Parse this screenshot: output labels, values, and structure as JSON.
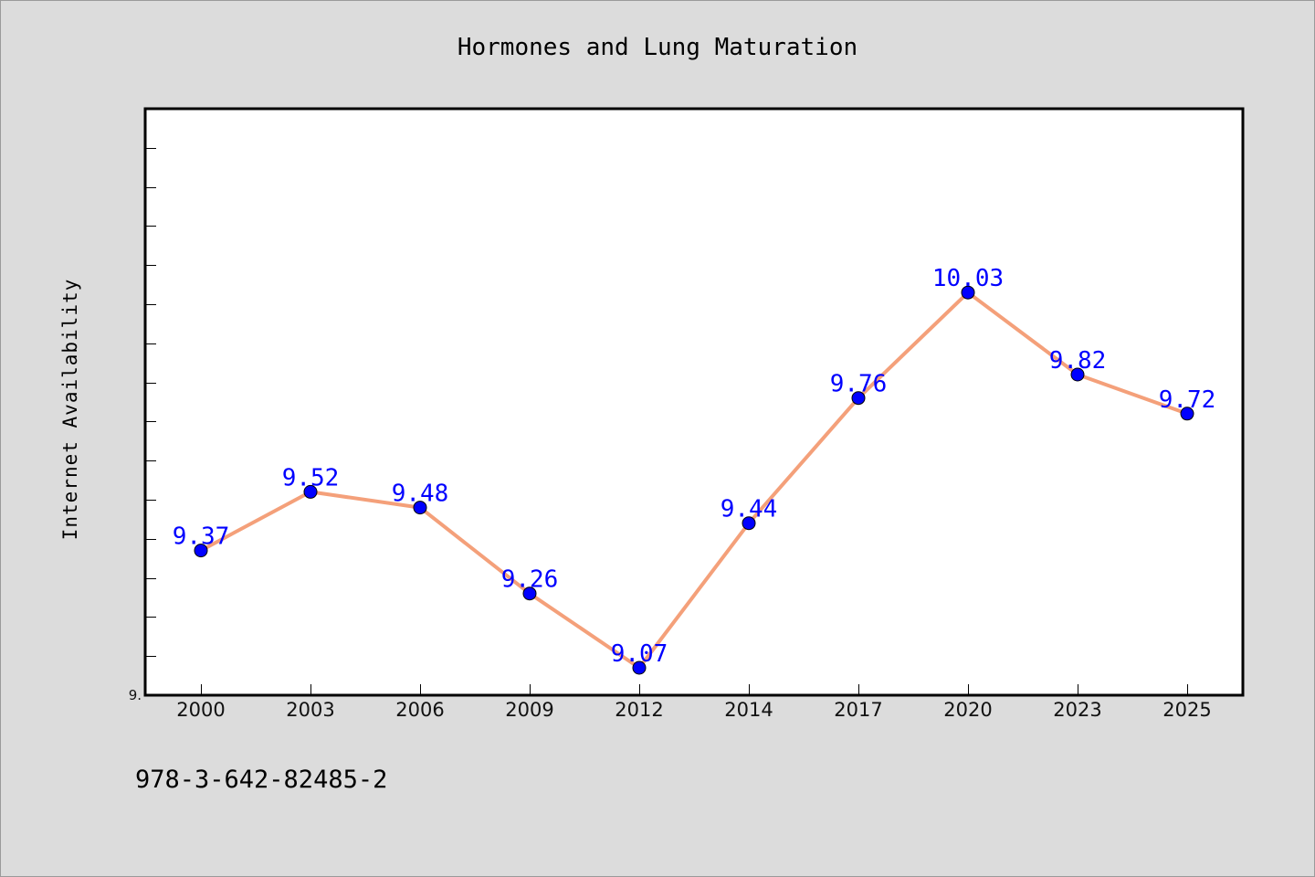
{
  "chart_data": {
    "type": "line",
    "title": "Hormones and Lung Maturation",
    "ylabel": "Internet Availability",
    "xlabel": "",
    "categories": [
      "2000",
      "2003",
      "2006",
      "2009",
      "2012",
      "2014",
      "2017",
      "2020",
      "2023",
      "2025"
    ],
    "series": [
      {
        "values": [
          9.37,
          9.52,
          9.48,
          9.26,
          9.07,
          9.44,
          9.76,
          10.03,
          9.82,
          9.72
        ],
        "data_labels": [
          "9.37",
          "9.52",
          "9.48",
          "9.26",
          "9.07",
          "9.44",
          "9.76",
          "10.03",
          "9.82",
          "9.72"
        ],
        "line_color": "#f4a07a",
        "marker_color": "#0000ff"
      }
    ],
    "ylim": [
      9.0,
      10.5
    ],
    "y_tick_step": 0.1,
    "y_tick_labels": [
      "9."
    ],
    "grid": false,
    "legend": "none"
  },
  "footer": {
    "isbn": "978-3-642-82485-2"
  }
}
